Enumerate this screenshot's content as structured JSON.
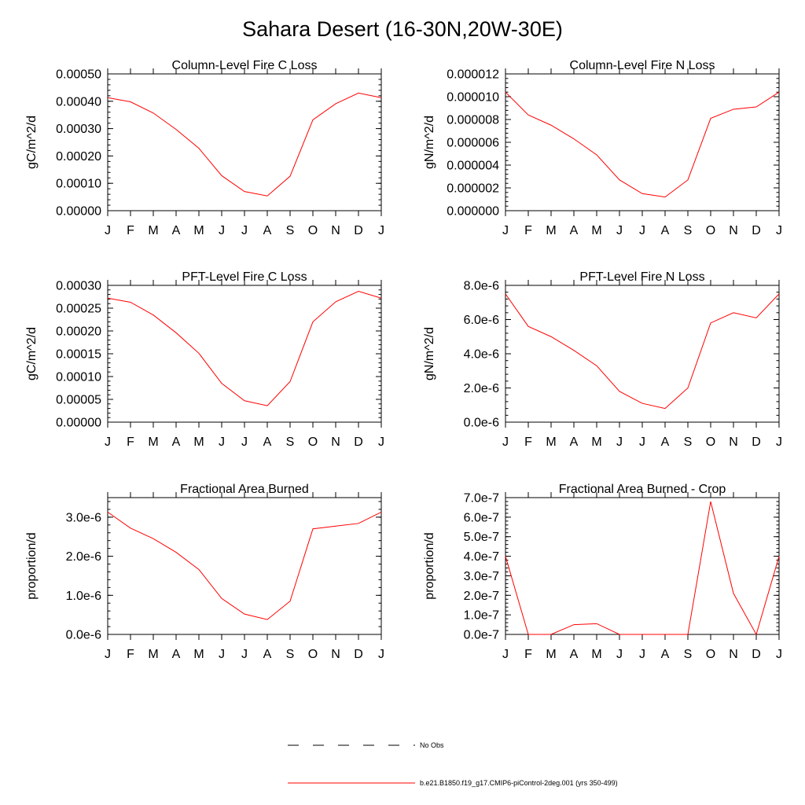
{
  "title": "Sahara Desert (16-30N,20W-30E)",
  "colors": {
    "series": "#ff0000",
    "axis": "#000000",
    "obs": "#000000"
  },
  "legend": [
    {
      "label": "No Obs",
      "style": "dashed",
      "color": "#000000"
    },
    {
      "label": "b.e21.B1850.f19_g17.CMIP6-piControl-2deg.001 (yrs 350-499)",
      "style": "solid",
      "color": "#ff0000"
    }
  ],
  "chart_data": [
    {
      "type": "line",
      "title": "Column-Level Fire C Loss",
      "ylabel": "gC/m^2/d",
      "xlabel": "",
      "categories": [
        "J",
        "F",
        "M",
        "A",
        "M",
        "J",
        "J",
        "A",
        "S",
        "O",
        "N",
        "D",
        "J"
      ],
      "ylim": [
        0,
        0.0005
      ],
      "yticks": [
        0,
        0.0001,
        0.0002,
        0.0003,
        0.0004,
        0.0005
      ],
      "ytick_labels": [
        "0.00000",
        "0.00010",
        "0.00020",
        "0.00030",
        "0.00040",
        "0.00050"
      ],
      "series": [
        {
          "name": "b.e21.B1850.f19_g17.CMIP6-piControl-2deg.001 (yrs 350-499)",
          "values": [
            0.000413,
            0.000398,
            0.000357,
            0.000297,
            0.000228,
            0.000128,
            7e-05,
            5.4e-05,
            0.000126,
            0.000332,
            0.000391,
            0.00043,
            0.000413
          ]
        }
      ]
    },
    {
      "type": "line",
      "title": "Column-Level Fire N Loss",
      "ylabel": "gN/m^2/d",
      "xlabel": "",
      "categories": [
        "J",
        "F",
        "M",
        "A",
        "M",
        "J",
        "J",
        "A",
        "S",
        "O",
        "N",
        "D",
        "J"
      ],
      "ylim": [
        0,
        1.2e-05
      ],
      "yticks": [
        0,
        2e-06,
        4e-06,
        6e-06,
        8e-06,
        1e-05,
        1.2e-05
      ],
      "ytick_labels": [
        "0.000000",
        "0.000002",
        "0.000004",
        "0.000006",
        "0.000008",
        "0.000010",
        "0.000012"
      ],
      "series": [
        {
          "name": "b.e21.B1850.f19_g17.CMIP6-piControl-2deg.001 (yrs 350-499)",
          "values": [
            1.04e-05,
            8.4e-06,
            7.5e-06,
            6.3e-06,
            4.9e-06,
            2.7e-06,
            1.5e-06,
            1.2e-06,
            2.7e-06,
            8.1e-06,
            8.9e-06,
            9.1e-06,
            1.04e-05
          ]
        }
      ]
    },
    {
      "type": "line",
      "title": "PFT-Level Fire C Loss",
      "ylabel": "gC/m^2/d",
      "xlabel": "",
      "categories": [
        "J",
        "F",
        "M",
        "A",
        "M",
        "J",
        "J",
        "A",
        "S",
        "O",
        "N",
        "D",
        "J"
      ],
      "ylim": [
        0,
        0.0003
      ],
      "yticks": [
        0,
        5e-05,
        0.0001,
        0.00015,
        0.0002,
        0.00025,
        0.0003
      ],
      "ytick_labels": [
        "0.00000",
        "0.00005",
        "0.00010",
        "0.00015",
        "0.00020",
        "0.00025",
        "0.00030"
      ],
      "series": [
        {
          "name": "b.e21.B1850.f19_g17.CMIP6-piControl-2deg.001 (yrs 350-499)",
          "values": [
            0.000272,
            0.000263,
            0.000235,
            0.000196,
            0.000151,
            8.5e-05,
            4.7e-05,
            3.6e-05,
            8.9e-05,
            0.00022,
            0.000264,
            0.000287,
            0.000272
          ]
        }
      ]
    },
    {
      "type": "line",
      "title": "PFT-Level Fire N Loss",
      "ylabel": "gN/m^2/d",
      "xlabel": "",
      "categories": [
        "J",
        "F",
        "M",
        "A",
        "M",
        "J",
        "J",
        "A",
        "S",
        "O",
        "N",
        "D",
        "J"
      ],
      "ylim": [
        0,
        8e-06
      ],
      "yticks": [
        0,
        2e-06,
        4e-06,
        6e-06,
        8e-06
      ],
      "ytick_labels": [
        "0.0e-6",
        "2.0e-6",
        "4.0e-6",
        "6.0e-6",
        "8.0e-6"
      ],
      "series": [
        {
          "name": "b.e21.B1850.f19_g17.CMIP6-piControl-2deg.001 (yrs 350-499)",
          "values": [
            7.5e-06,
            5.6e-06,
            5e-06,
            4.2e-06,
            3.3e-06,
            1.8e-06,
            1.1e-06,
            8e-07,
            2e-06,
            5.8e-06,
            6.4e-06,
            6.1e-06,
            7.5e-06
          ]
        }
      ]
    },
    {
      "type": "line",
      "title": "Fractional Area Burned",
      "ylabel": "proportion/d",
      "xlabel": "",
      "categories": [
        "J",
        "F",
        "M",
        "A",
        "M",
        "J",
        "J",
        "A",
        "S",
        "O",
        "N",
        "D",
        "J"
      ],
      "ylim": [
        0,
        3.5e-06
      ],
      "yticks": [
        0,
        1e-06,
        2e-06,
        3e-06
      ],
      "ytick_labels": [
        "0.0e-6",
        "1.0e-6",
        "2.0e-6",
        "3.0e-6"
      ],
      "series": [
        {
          "name": "b.e21.B1850.f19_g17.CMIP6-piControl-2deg.001 (yrs 350-499)",
          "values": [
            3.13e-06,
            2.72e-06,
            2.45e-06,
            2.1e-06,
            1.66e-06,
            9.2e-07,
            5.2e-07,
            3.8e-07,
            8.5e-07,
            2.7e-06,
            2.77e-06,
            2.84e-06,
            3.13e-06
          ]
        }
      ]
    },
    {
      "type": "line",
      "title": "Fractional Area Burned - Crop",
      "ylabel": "proportion/d",
      "xlabel": "",
      "categories": [
        "J",
        "F",
        "M",
        "A",
        "M",
        "J",
        "J",
        "A",
        "S",
        "O",
        "N",
        "D",
        "J"
      ],
      "ylim": [
        0,
        7e-07
      ],
      "yticks": [
        0,
        1e-07,
        2e-07,
        3e-07,
        4e-07,
        5e-07,
        6e-07,
        7e-07
      ],
      "ytick_labels": [
        "0.0e-7",
        "1.0e-7",
        "2.0e-7",
        "3.0e-7",
        "4.0e-7",
        "5.0e-7",
        "6.0e-7",
        "7.0e-7"
      ],
      "series": [
        {
          "name": "b.e21.B1850.f19_g17.CMIP6-piControl-2deg.001 (yrs 350-499)",
          "values": [
            4e-07,
            0,
            0,
            5e-08,
            5.5e-08,
            0,
            0,
            0,
            0,
            6.8e-07,
            2.1e-07,
            0,
            4e-07
          ]
        }
      ]
    }
  ]
}
